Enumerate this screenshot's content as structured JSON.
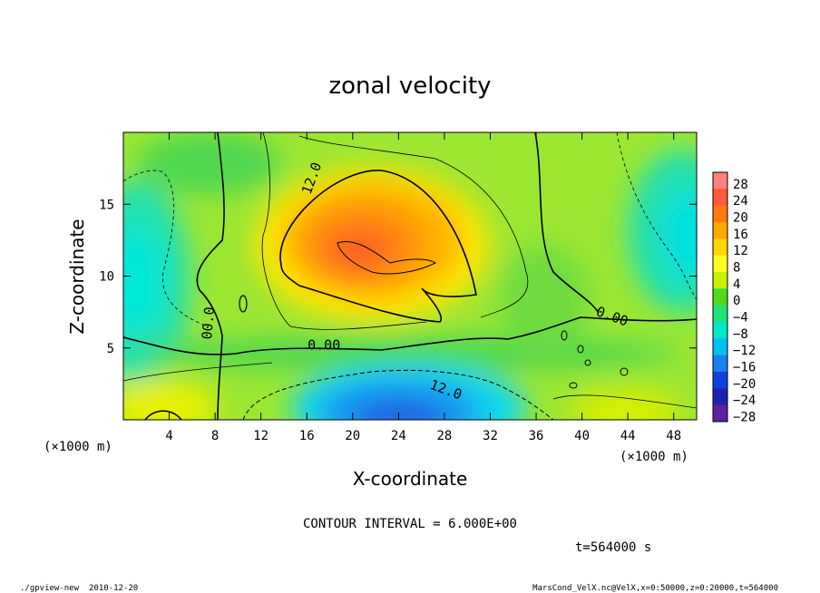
{
  "chart_data": {
    "type": "heatmap",
    "title": "zonal velocity",
    "xlabel": "X-coordinate",
    "ylabel": "Z-coordinate",
    "x_unit": "(×1000 m)",
    "z_unit": "(×1000 m)",
    "xlim": [
      0,
      50
    ],
    "ylim": [
      0,
      20
    ],
    "x_ticks": [
      "4",
      "8",
      "12",
      "16",
      "20",
      "24",
      "28",
      "32",
      "36",
      "40",
      "44",
      "48"
    ],
    "x_tick_values": [
      4,
      8,
      12,
      16,
      20,
      24,
      28,
      32,
      36,
      40,
      44,
      48
    ],
    "y_ticks": [
      "5",
      "10",
      "15"
    ],
    "y_tick_values": [
      5,
      10,
      15
    ],
    "colorbar_labels": [
      "28",
      "24",
      "20",
      "16",
      "12",
      "8",
      "4",
      "0",
      "−4",
      "−8",
      "−12",
      "−16",
      "−20",
      "−24",
      "−28"
    ],
    "colorbar_levels": [
      28,
      24,
      20,
      16,
      12,
      8,
      4,
      0,
      -4,
      -8,
      -12,
      -16,
      -20,
      -24,
      -28
    ],
    "colorbar_colors": [
      "#ff8080",
      "#ff5a3a",
      "#ff7a10",
      "#ffaa00",
      "#ffd700",
      "#ffff20",
      "#c8f000",
      "#50d820",
      "#20e078",
      "#00e8c8",
      "#00c0f0",
      "#1880f0",
      "#1040e0",
      "#2020b0",
      "#6020a0"
    ],
    "contour_labels": [
      {
        "text": "12.0",
        "x": 16.8,
        "z": 16.7,
        "angle": -70
      },
      {
        "text": "0.00",
        "x": 17.5,
        "z": 4.9,
        "angle": 0
      },
      {
        "text": "12.0",
        "x": 28.0,
        "z": 1.8,
        "angle": 20
      },
      {
        "text": "0.00",
        "x": 42.5,
        "z": 6.9,
        "angle": 20
      },
      {
        "text": "00.0",
        "x": 7.8,
        "z": 6.7,
        "angle": -85
      }
    ],
    "features": {
      "max_jet": {
        "x_center": 22,
        "z_center": 11.5,
        "peak": 22
      },
      "min_return_flow": {
        "x_center": 24,
        "z_center": 1.5,
        "peak": -16
      }
    }
  },
  "footer": {
    "contour_interval": "CONTOUR INTERVAL = 6.000E+00",
    "time": "t=564000 s",
    "program": "./gpview-new",
    "date": "2010-12-20",
    "source": "MarsCond_VelX.nc@VelX,x=0:50000,z=0:20000,t=564000"
  }
}
